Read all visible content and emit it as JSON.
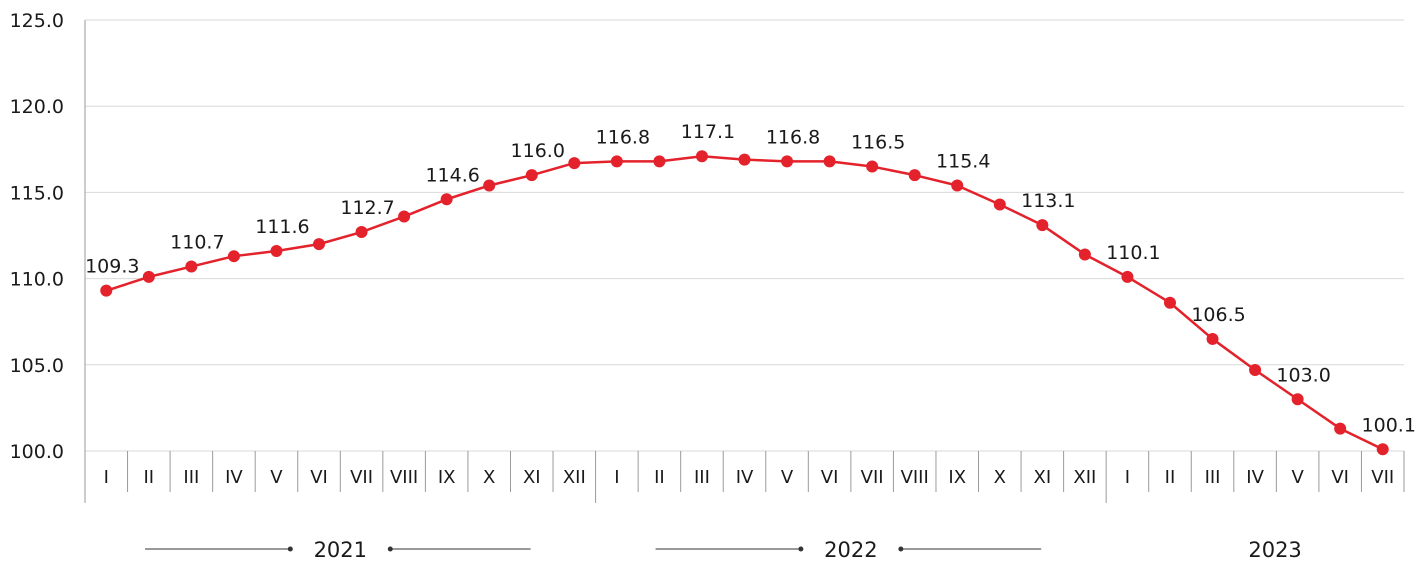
{
  "chart_data": {
    "type": "line",
    "ylim": [
      100.0,
      125.0
    ],
    "yticks": [
      "100.0",
      "105.0",
      "110.0",
      "115.0",
      "120.0",
      "125.0"
    ],
    "grid": true,
    "years": [
      "2021",
      "2022",
      "2023"
    ],
    "months": {
      "2021": [
        "I",
        "II",
        "III",
        "IV",
        "V",
        "VI",
        "VII",
        "VIII",
        "IX",
        "X",
        "XI",
        "XII"
      ],
      "2022": [
        "I",
        "II",
        "III",
        "IV",
        "V",
        "VI",
        "VII",
        "VIII",
        "IX",
        "X",
        "XI",
        "XII"
      ],
      "2023": [
        "I",
        "II",
        "III",
        "IV",
        "V",
        "VI",
        "VII"
      ]
    },
    "series": [
      {
        "color": "#e3222b",
        "values": [
          109.3,
          110.1,
          110.7,
          111.3,
          111.6,
          112.0,
          112.7,
          113.6,
          114.6,
          115.4,
          116.0,
          116.7,
          116.8,
          116.8,
          117.1,
          116.9,
          116.8,
          116.8,
          116.5,
          116.0,
          115.4,
          114.3,
          113.1,
          111.4,
          110.1,
          108.6,
          106.5,
          104.7,
          103.0,
          101.3,
          100.1
        ],
        "labels": [
          "109.3",
          "",
          "110.7",
          "",
          "111.6",
          "",
          "112.7",
          "",
          "114.6",
          "",
          "116.0",
          "",
          "116.8",
          "",
          "117.1",
          "",
          "116.8",
          "",
          "116.5",
          "",
          "115.4",
          "",
          "113.1",
          "",
          "110.1",
          "",
          "106.5",
          "",
          "103.0",
          "",
          "100.1"
        ]
      }
    ]
  }
}
